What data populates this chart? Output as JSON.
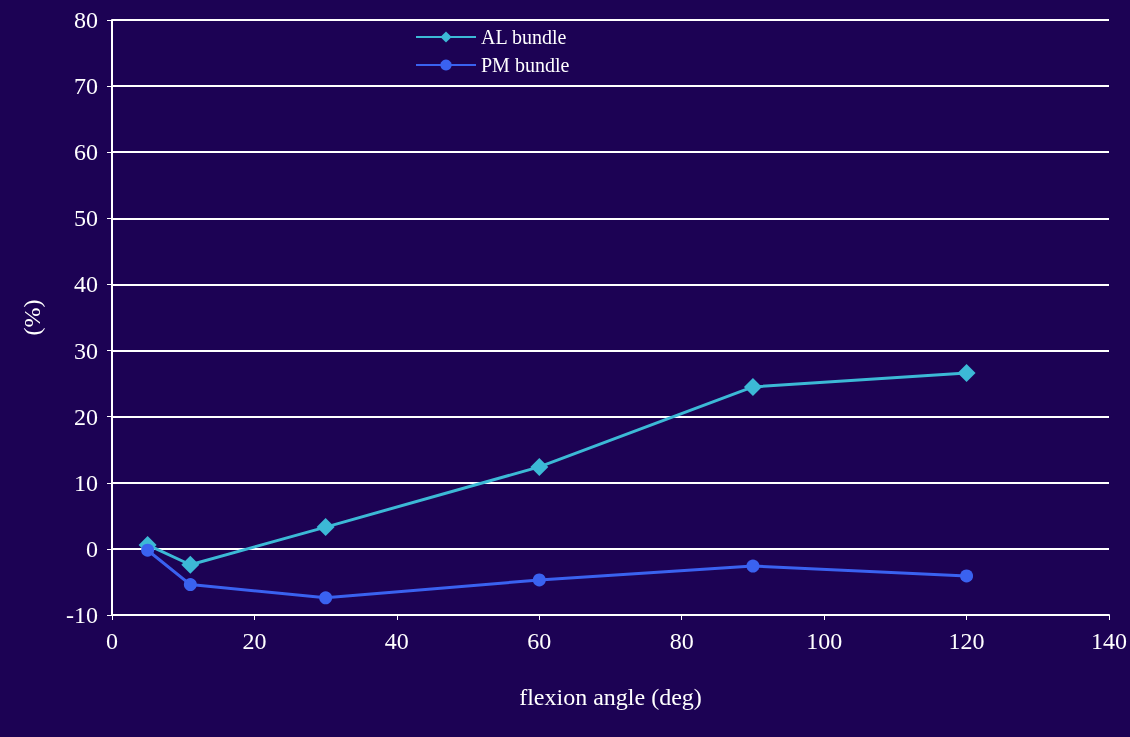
{
  "chart_data": {
    "type": "line",
    "xlabel": "flexion angle (deg)",
    "ylabel": "(%)",
    "xlim": [
      0,
      140
    ],
    "xticks": [
      0,
      20,
      40,
      60,
      80,
      100,
      120,
      140
    ],
    "ylim": [
      -10,
      80
    ],
    "yticks": [
      -10,
      0,
      10,
      20,
      30,
      40,
      50,
      60,
      70,
      80
    ],
    "grid": "y",
    "legend": "top",
    "series": [
      {
        "name": "AL bundle",
        "color": "#3cb9d6",
        "marker": "diamond",
        "x": [
          5,
          11,
          30,
          60,
          90,
          120
        ],
        "values": [
          0.6,
          -2.4,
          3.3,
          12.4,
          24.5,
          26.6
        ]
      },
      {
        "name": "PM bundle",
        "color": "#3a62f0",
        "marker": "circle",
        "x": [
          5,
          11,
          30,
          60,
          90,
          120
        ],
        "values": [
          -0.2,
          -5.4,
          -7.4,
          -4.7,
          -2.6,
          -4.1
        ]
      }
    ]
  }
}
